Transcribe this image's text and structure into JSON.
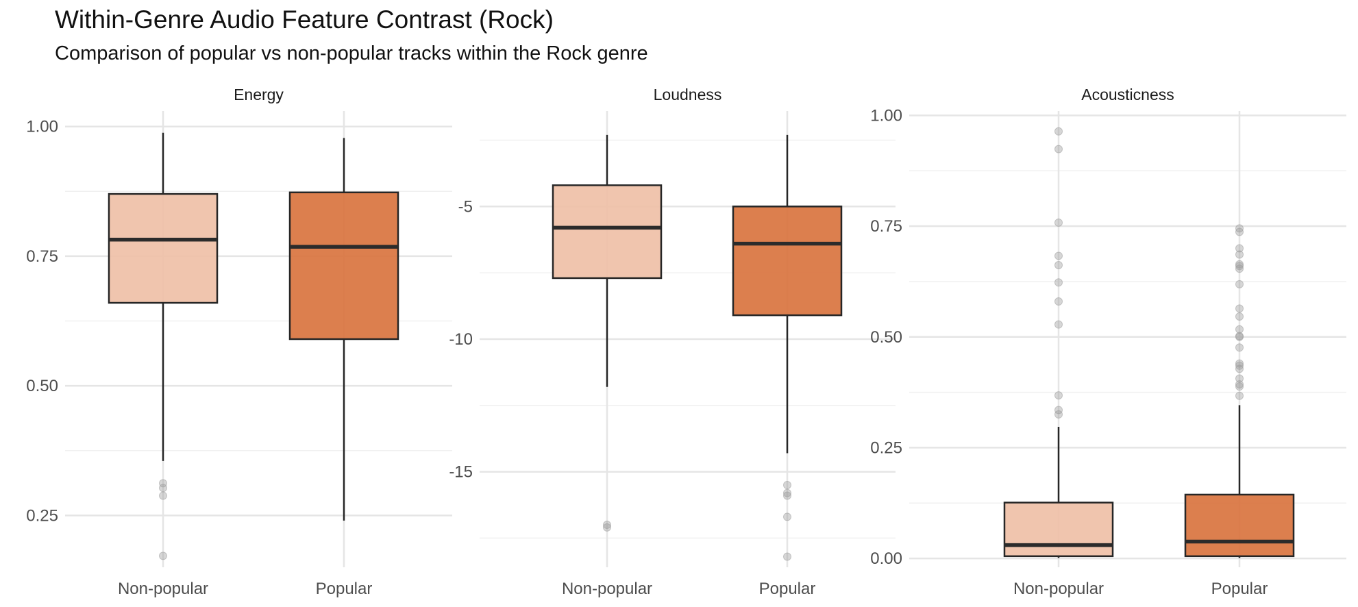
{
  "title": "Within-Genre Audio Feature Contrast (Rock)",
  "subtitle": "Comparison of popular vs non-popular tracks within the Rock genre",
  "colors": {
    "non_popular_fill": "#EFC0A7",
    "popular_fill": "#D9743F",
    "box_stroke": "#262626",
    "median": "#2b2b2b",
    "grid_major": "#e5e5e5",
    "grid_minor": "#f0f0f0",
    "outlier": "#9a9a9a"
  },
  "chart_data": [
    {
      "type": "boxplot",
      "panel": "Energy",
      "categories": [
        "Non-popular",
        "Popular"
      ],
      "ylim": [
        0.15,
        1.03
      ],
      "yticks": [
        0.25,
        0.5,
        0.75,
        1.0
      ],
      "ytick_labels": [
        "0.25",
        "0.50",
        "0.75",
        "1.00"
      ],
      "minor_ticks": [
        0.375,
        0.625,
        0.875
      ],
      "boxes": [
        {
          "group": "Non-popular",
          "whisker_low": 0.355,
          "q1": 0.66,
          "median": 0.782,
          "q3": 0.87,
          "whisker_high": 0.988,
          "outliers": [
            0.312,
            0.303,
            0.288,
            0.172
          ]
        },
        {
          "group": "Popular",
          "whisker_low": 0.24,
          "q1": 0.59,
          "median": 0.768,
          "q3": 0.873,
          "whisker_high": 0.978,
          "outliers": []
        }
      ]
    },
    {
      "type": "boxplot",
      "panel": "Loudness",
      "categories": [
        "Non-popular",
        "Popular"
      ],
      "ylim": [
        -18.6,
        -1.4
      ],
      "yticks": [
        -15,
        -10,
        -5
      ],
      "ytick_labels": [
        "-15",
        "-10",
        "-5"
      ],
      "minor_ticks": [
        -17.5,
        -12.5,
        -7.5,
        -2.5
      ],
      "boxes": [
        {
          "group": "Non-popular",
          "whisker_low": -11.8,
          "q1": -7.7,
          "median": -5.8,
          "q3": -4.2,
          "whisker_high": -2.3,
          "outliers": [
            -17.0,
            -17.1
          ]
        },
        {
          "group": "Popular",
          "whisker_low": -14.3,
          "q1": -9.1,
          "median": -6.4,
          "q3": -5.0,
          "whisker_high": -2.3,
          "outliers": [
            -15.5,
            -15.8,
            -15.9,
            -16.7,
            -18.2
          ]
        }
      ]
    },
    {
      "type": "boxplot",
      "panel": "Acousticness",
      "categories": [
        "Non-popular",
        "Popular"
      ],
      "ylim": [
        -0.02,
        1.01
      ],
      "yticks": [
        0.0,
        0.25,
        0.5,
        0.75,
        1.0
      ],
      "ytick_labels": [
        "0.00",
        "0.25",
        "0.50",
        "0.75",
        "1.00"
      ],
      "minor_ticks": [
        0.125,
        0.375,
        0.625,
        0.875
      ],
      "boxes": [
        {
          "group": "Non-popular",
          "whisker_low": 0.001,
          "q1": 0.005,
          "median": 0.03,
          "q3": 0.126,
          "whisker_high": 0.297,
          "outliers": [
            0.325,
            0.335,
            0.368,
            0.528,
            0.58,
            0.623,
            0.662,
            0.683,
            0.758,
            0.924,
            0.964
          ]
        },
        {
          "group": "Popular",
          "whisker_low": 0.001,
          "q1": 0.005,
          "median": 0.038,
          "q3": 0.144,
          "whisker_high": 0.346,
          "outliers": [
            0.367,
            0.388,
            0.393,
            0.406,
            0.428,
            0.435,
            0.44,
            0.476,
            0.5,
            0.502,
            0.517,
            0.546,
            0.564,
            0.619,
            0.654,
            0.66,
            0.664,
            0.686,
            0.7,
            0.737,
            0.745
          ]
        }
      ]
    }
  ]
}
